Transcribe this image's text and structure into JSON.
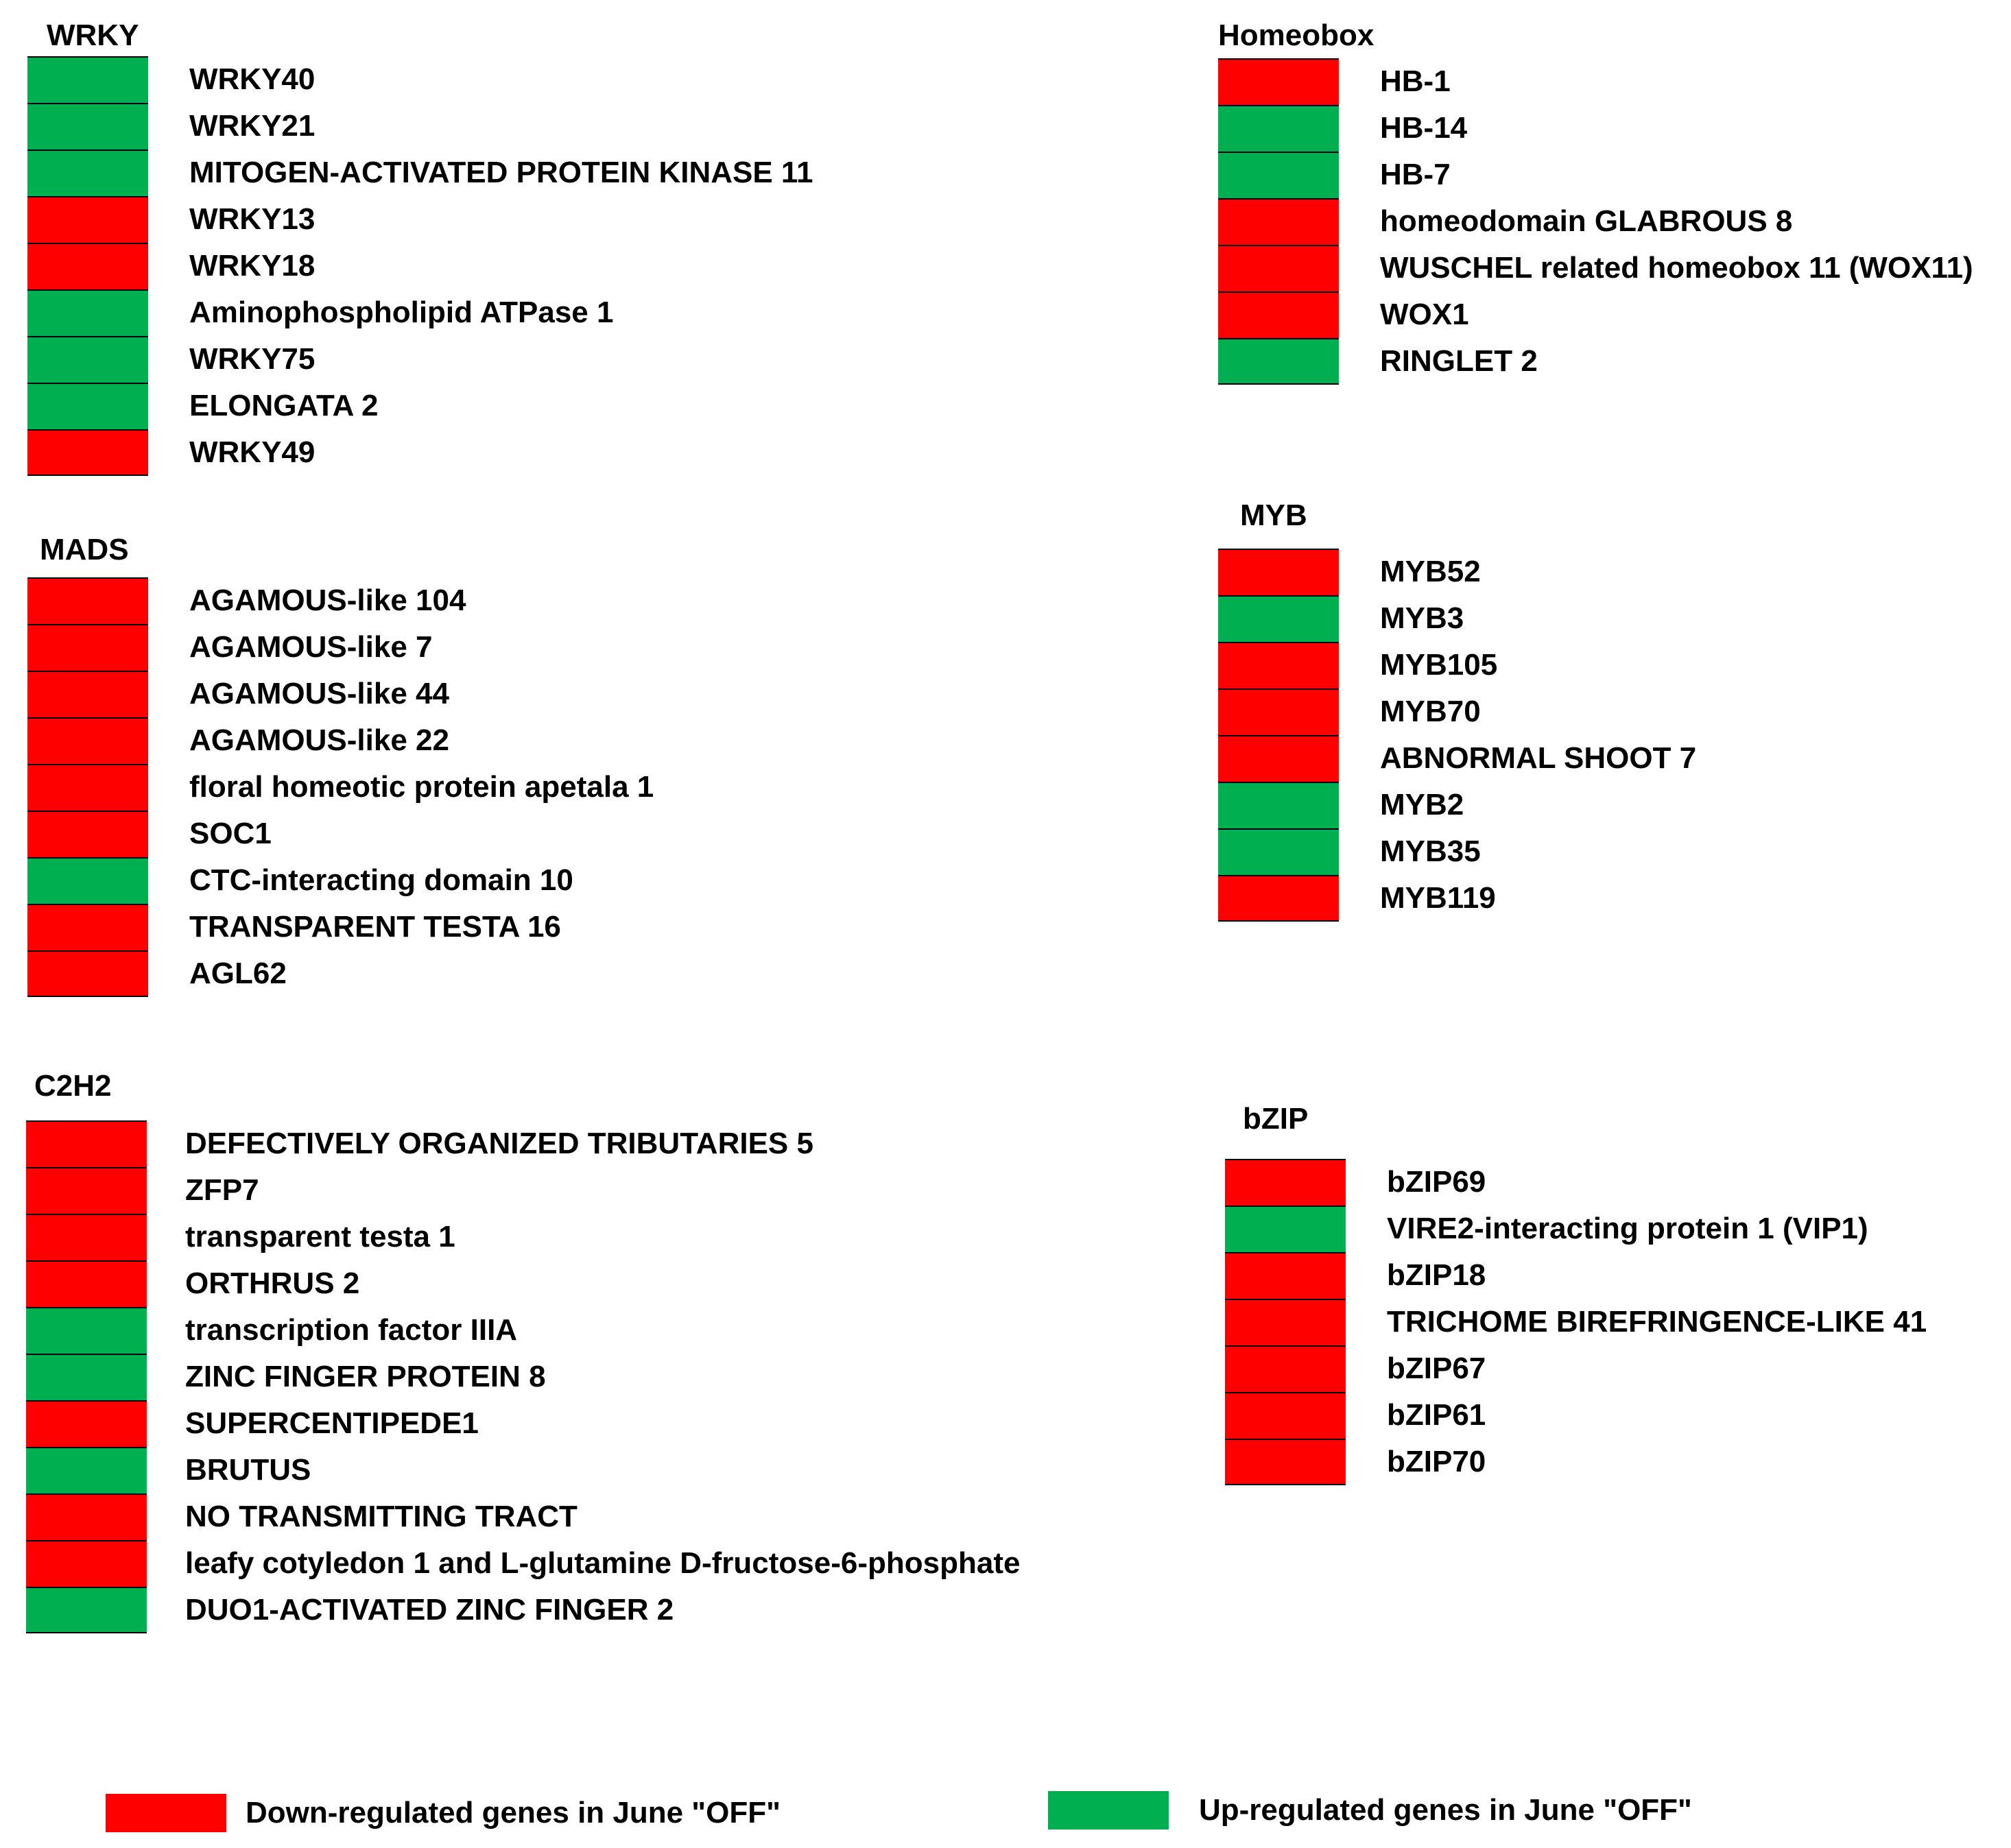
{
  "colors": {
    "down": "#ff0000",
    "up": "#00b050"
  },
  "groups": {
    "wrky": {
      "title": "WRKY",
      "genes": [
        {
          "name": "WRKY40",
          "reg": "up"
        },
        {
          "name": "WRKY21",
          "reg": "up"
        },
        {
          "name": "MITOGEN-ACTIVATED PROTEIN KINASE 11",
          "reg": "up"
        },
        {
          "name": "WRKY13",
          "reg": "down"
        },
        {
          "name": "WRKY18",
          "reg": "down"
        },
        {
          "name": "Aminophospholipid ATPase 1",
          "reg": "up"
        },
        {
          "name": "WRKY75",
          "reg": "up"
        },
        {
          "name": "ELONGATA 2",
          "reg": "up"
        },
        {
          "name": "WRKY49",
          "reg": "down"
        }
      ]
    },
    "mads": {
      "title": "MADS",
      "genes": [
        {
          "name": "AGAMOUS-like 104",
          "reg": "down"
        },
        {
          "name": "AGAMOUS-like 7",
          "reg": "down"
        },
        {
          "name": "AGAMOUS-like 44",
          "reg": "down"
        },
        {
          "name": "AGAMOUS-like 22",
          "reg": "down"
        },
        {
          "name": "floral homeotic protein apetala 1",
          "reg": "down"
        },
        {
          "name": "SOC1",
          "reg": "down"
        },
        {
          "name": "CTC-interacting domain 10",
          "reg": "up"
        },
        {
          "name": "TRANSPARENT TESTA 16",
          "reg": "down"
        },
        {
          "name": "AGL62",
          "reg": "down"
        }
      ]
    },
    "c2h2": {
      "title": "C2H2",
      "genes": [
        {
          "name": "DEFECTIVELY ORGANIZED TRIBUTARIES 5",
          "reg": "down"
        },
        {
          "name": "ZFP7",
          "reg": "down"
        },
        {
          "name": "transparent testa 1",
          "reg": "down"
        },
        {
          "name": "ORTHRUS 2",
          "reg": "down"
        },
        {
          "name": "transcription factor IIIA",
          "reg": "up"
        },
        {
          "name": " ZINC FINGER PROTEIN 8",
          "reg": "up"
        },
        {
          "name": "SUPERCENTIPEDE1",
          "reg": "down"
        },
        {
          "name": "BRUTUS",
          "reg": "up"
        },
        {
          "name": "NO TRANSMITTING TRACT",
          "reg": "down"
        },
        {
          "name": "leafy cotyledon 1 and L-glutamine D-fructose-6-phosphate",
          "reg": "down"
        },
        {
          "name": "DUO1-ACTIVATED ZINC FINGER 2",
          "reg": "up"
        }
      ]
    },
    "homeobox": {
      "title": "Homeobox",
      "genes": [
        {
          "name": "HB-1",
          "reg": "down"
        },
        {
          "name": "HB-14",
          "reg": "up"
        },
        {
          "name": "HB-7",
          "reg": "up"
        },
        {
          "name": "homeodomain GLABROUS 8",
          "reg": "down"
        },
        {
          "name": "WUSCHEL related homeobox 11 (WOX11)",
          "reg": "down"
        },
        {
          "name": "WOX1",
          "reg": "down"
        },
        {
          "name": "RINGLET 2",
          "reg": "up"
        }
      ]
    },
    "myb": {
      "title": "MYB",
      "genes": [
        {
          "name": "MYB52",
          "reg": "down"
        },
        {
          "name": "MYB3",
          "reg": "up"
        },
        {
          "name": "MYB105",
          "reg": "down"
        },
        {
          "name": "MYB70",
          "reg": "down"
        },
        {
          "name": "ABNORMAL SHOOT 7",
          "reg": "down"
        },
        {
          "name": "MYB2",
          "reg": "up"
        },
        {
          "name": "MYB35",
          "reg": "up"
        },
        {
          "name": "MYB119",
          "reg": "down"
        }
      ]
    },
    "bzip": {
      "title": "bZIP",
      "genes": [
        {
          "name": "bZIP69",
          "reg": "down"
        },
        {
          "name": "VIRE2-interacting protein 1 (VIP1)",
          "reg": "up"
        },
        {
          "name": "bZIP18",
          "reg": "down"
        },
        {
          "name": "TRICHOME BIREFRINGENCE-LIKE 41",
          "reg": "down"
        },
        {
          "name": "bZIP67",
          "reg": "down"
        },
        {
          "name": "bZIP61",
          "reg": "down"
        },
        {
          "name": "bZIP70",
          "reg": "down"
        }
      ]
    }
  },
  "legend": {
    "down_label": "Down-regulated genes in June \"OFF\"",
    "up_label": "Up-regulated genes in June \"OFF\""
  }
}
